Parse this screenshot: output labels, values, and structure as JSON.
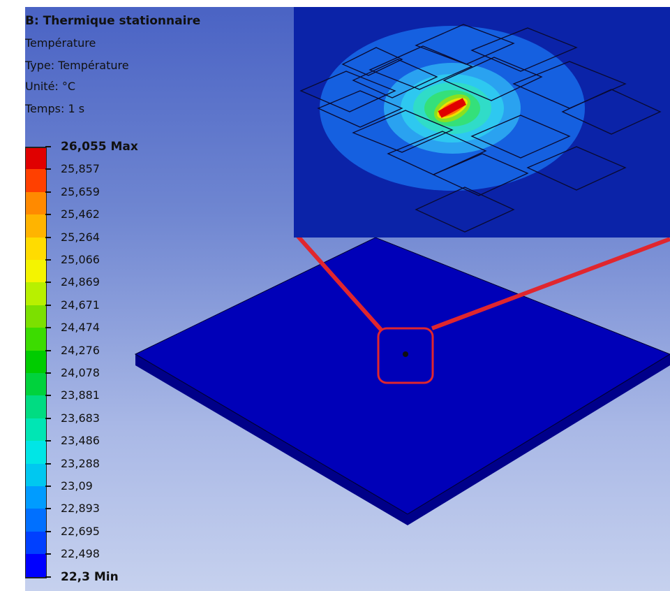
{
  "result": {
    "title": "B: Thermique stationnaire",
    "variable": "Température",
    "type_label": "Type: Température",
    "unit_label": "Unité: °C",
    "time_label": "Temps: 1 s"
  },
  "legend": {
    "labels": [
      "26,055 Max",
      "25,857",
      "25,659",
      "25,462",
      "25,264",
      "25,066",
      "24,869",
      "24,671",
      "24,474",
      "24,276",
      "24,078",
      "23,881",
      "23,683",
      "23,486",
      "23,288",
      "23,09",
      "22,893",
      "22,695",
      "22,498",
      "22,3 Min"
    ],
    "colors": [
      "#e00000",
      "#ff4000",
      "#ff8a00",
      "#ffb400",
      "#ffdc00",
      "#f4f400",
      "#b8f000",
      "#7ce000",
      "#3cdc00",
      "#00cc00",
      "#00d23c",
      "#00dc82",
      "#00e6b4",
      "#00e6e6",
      "#00c8f0",
      "#009cff",
      "#0070ff",
      "#0040ff",
      "#0000ff"
    ],
    "max_value": 26.055,
    "min_value": 22.3,
    "unit": "°C"
  },
  "model": {
    "plate_color": "#0000b8",
    "highlight_color": "#e0262e",
    "inset_background": "#0b23a8"
  }
}
